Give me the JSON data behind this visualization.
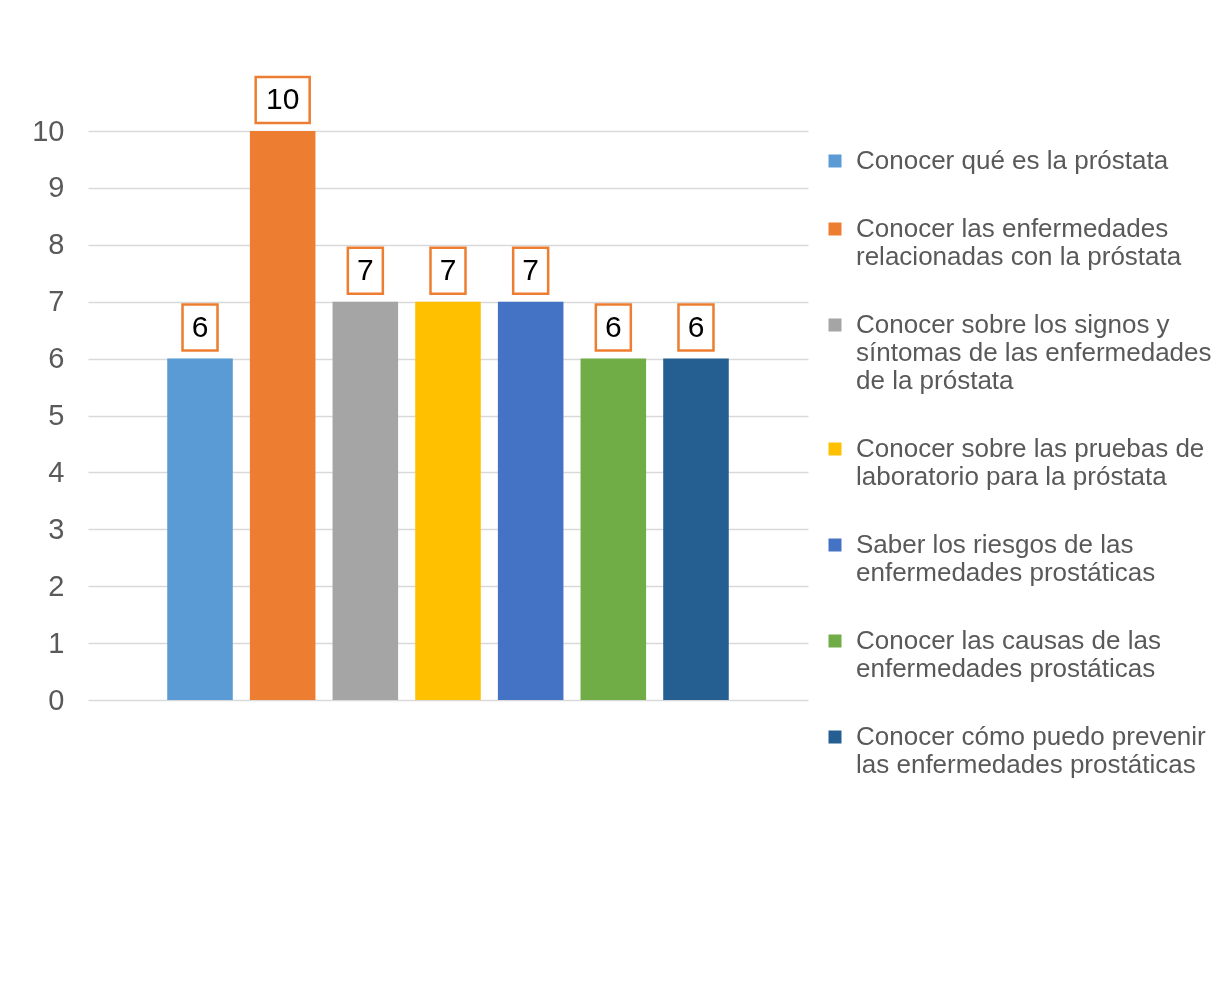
{
  "chart_data": {
    "type": "bar",
    "categories": [
      null
    ],
    "series": [
      {
        "name": "Conocer qué es la próstata",
        "color": "#5b9bd5",
        "values": [
          6
        ]
      },
      {
        "name": "Conocer las enfermedades relacionadas con la próstata",
        "color": "#ed7d31",
        "values": [
          10
        ]
      },
      {
        "name": "Conocer sobre los signos y síntomas de las enfermedades de la próstata",
        "color": "#a5a5a5",
        "values": [
          7
        ]
      },
      {
        "name": "Conocer sobre las pruebas de laboratorio para la próstata",
        "color": "#ffc000",
        "values": [
          7
        ]
      },
      {
        "name": "Saber los riesgos de las enfermedades prostáticas",
        "color": "#4472c4",
        "values": [
          7
        ]
      },
      {
        "name": "Conocer las causas de las enfermedades prostáticas",
        "color": "#70ad47",
        "values": [
          6
        ]
      },
      {
        "name": "Conocer cómo puedo prevenir las enfermedades prostáticas",
        "color": "#255e91",
        "values": [
          6
        ]
      }
    ],
    "ylim": [
      0,
      10
    ],
    "yticks": [
      0,
      1,
      2,
      3,
      4,
      5,
      6,
      7,
      8,
      9,
      10
    ],
    "grid": "y",
    "legend": "right",
    "data_labels": true,
    "tick_labels": "y"
  }
}
